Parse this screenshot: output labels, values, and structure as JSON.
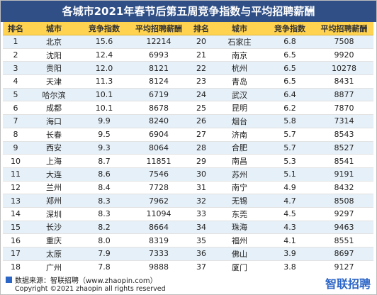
{
  "title": "各城市2021年春节后第五周竞争指数与平均招聘薪酬",
  "headers": [
    "排名",
    "城市",
    "竞争指数",
    "平均招聘薪酬",
    "排名",
    "城市",
    "竞争指数",
    "平均招聘薪酬"
  ],
  "rows": [
    [
      "1",
      "北京",
      "15.6",
      "12214",
      "20",
      "石家庄",
      "6.8",
      "7508"
    ],
    [
      "2",
      "沈阳",
      "12.4",
      "6993",
      "21",
      "南京",
      "6.5",
      "9920"
    ],
    [
      "3",
      "贵阳",
      "12.0",
      "8121",
      "22",
      "杭州",
      "6.5",
      "10278"
    ],
    [
      "4",
      "天津",
      "11.3",
      "8124",
      "23",
      "青岛",
      "6.5",
      "8431"
    ],
    [
      "5",
      "哈尔滨",
      "10.1",
      "6719",
      "24",
      "武汉",
      "6.4",
      "8877"
    ],
    [
      "6",
      "成都",
      "10.1",
      "8678",
      "25",
      "昆明",
      "6.2",
      "7870"
    ],
    [
      "7",
      "海口",
      "9.9",
      "8240",
      "26",
      "烟台",
      "5.8",
      "7314"
    ],
    [
      "8",
      "长春",
      "9.5",
      "6904",
      "27",
      "济南",
      "5.7",
      "8543"
    ],
    [
      "9",
      "西安",
      "9.3",
      "8064",
      "28",
      "合肥",
      "5.7",
      "8527"
    ],
    [
      "10",
      "上海",
      "8.7",
      "11851",
      "29",
      "南昌",
      "5.3",
      "8541"
    ],
    [
      "11",
      "大连",
      "8.6",
      "7546",
      "30",
      "苏州",
      "5.1",
      "9191"
    ],
    [
      "12",
      "兰州",
      "8.4",
      "7728",
      "31",
      "南宁",
      "4.9",
      "8432"
    ],
    [
      "13",
      "郑州",
      "8.3",
      "7962",
      "32",
      "无锡",
      "4.7",
      "8508"
    ],
    [
      "14",
      "深圳",
      "8.3",
      "11094",
      "33",
      "东莞",
      "4.5",
      "9297"
    ],
    [
      "15",
      "长沙",
      "8.2",
      "8664",
      "34",
      "珠海",
      "4.3",
      "9463"
    ],
    [
      "16",
      "重庆",
      "8.0",
      "8319",
      "35",
      "福州",
      "4.1",
      "8551"
    ],
    [
      "17",
      "太原",
      "7.9",
      "7333",
      "36",
      "佛山",
      "3.9",
      "8697"
    ],
    [
      "18",
      "广州",
      "7.8",
      "9888",
      "37",
      "厦门",
      "3.8",
      "9127"
    ],
    [
      "19",
      "乌鲁木齐",
      "7.0",
      "8469",
      "38",
      "宁波",
      "3.3",
      "9219"
    ]
  ],
  "footer": {
    "source": "数据来源：智联招聘（www.zhaopin.com）",
    "copyright": "Copyright ©2021 zhaopin all rights reserved",
    "logo": "智联招聘"
  },
  "colors": {
    "title_bg": "#2f4f86",
    "header_bg": "#ffd24f",
    "stripe_bg": "#e6f0f8",
    "logo": "#2b65c6"
  }
}
